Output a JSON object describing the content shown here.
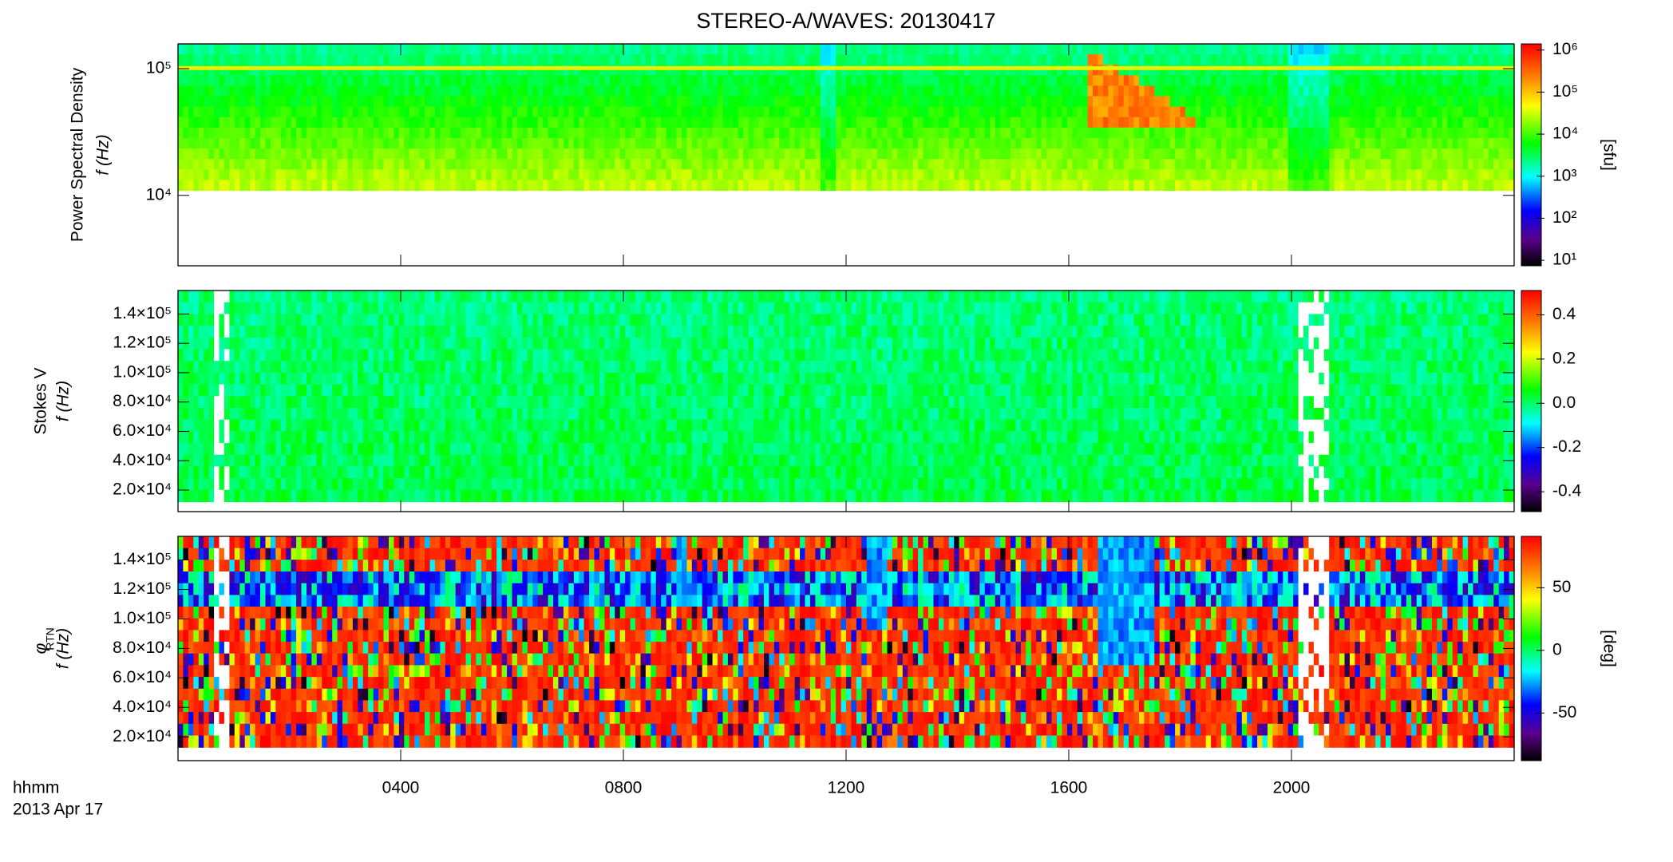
{
  "chart_data": [
    {
      "type": "spectrogram",
      "title": "STEREO-A/WAVES: 20130417",
      "ylabel": [
        "Power Spectral Density",
        "f (Hz)"
      ],
      "ylog": true,
      "ylim": [
        2780,
        157000
      ],
      "yticks": [
        {
          "value": 10000,
          "label": "10⁴"
        },
        {
          "value": 100000,
          "label": "10⁵"
        }
      ],
      "colorbar": {
        "log": true,
        "lim": [
          7.4,
          1400000
        ],
        "label": "[sfu]",
        "ticks": [
          {
            "value": 10,
            "label": "10¹"
          },
          {
            "value": 100,
            "label": "10²"
          },
          {
            "value": 1000,
            "label": "10³"
          },
          {
            "value": 10000,
            "label": "10⁴"
          },
          {
            "value": 100000,
            "label": "10⁵"
          },
          {
            "value": 1000000,
            "label": "10⁶"
          }
        ]
      }
    },
    {
      "type": "spectrogram",
      "ylabel": [
        "Stokes V",
        "f (Hz)"
      ],
      "ylog": false,
      "ylim": [
        5300,
        156000
      ],
      "yticks": [
        {
          "value": 20000,
          "label": "2.0×10⁴"
        },
        {
          "value": 40000,
          "label": "4.0×10⁴"
        },
        {
          "value": 60000,
          "label": "6.0×10⁴"
        },
        {
          "value": 80000,
          "label": "8.0×10⁴"
        },
        {
          "value": 100000,
          "label": "1.0×10⁵"
        },
        {
          "value": 120000,
          "label": "1.2×10⁵"
        },
        {
          "value": 140000,
          "label": "1.4×10⁵"
        }
      ],
      "colorbar": {
        "log": false,
        "lim": [
          -0.49,
          0.51
        ],
        "ticks": [
          -0.4,
          -0.2,
          {
            "value": 0,
            "label": "0.0"
          },
          0.2,
          0.4
        ]
      }
    },
    {
      "type": "spectrogram",
      "ylabel": [
        "φ",
        "f (Hz)"
      ],
      "ylabel_sub": "RTN",
      "ylog": false,
      "ylim": [
        3900,
        156000
      ],
      "yticks": [
        {
          "value": 20000,
          "label": "2.0×10⁴"
        },
        {
          "value": 40000,
          "label": "4.0×10⁴"
        },
        {
          "value": 60000,
          "label": "6.0×10⁴"
        },
        {
          "value": 80000,
          "label": "8.0×10⁴"
        },
        {
          "value": 100000,
          "label": "1.0×10⁵"
        },
        {
          "value": 120000,
          "label": "1.2×10⁵"
        },
        {
          "value": 140000,
          "label": "1.4×10⁵"
        }
      ],
      "colorbar": {
        "log": false,
        "lim": [
          -88,
          91
        ],
        "label": "[deg]",
        "ticks": [
          -50,
          0,
          50
        ]
      },
      "xlim": [
        0,
        24
      ],
      "xticks": [
        {
          "value": 4,
          "label": "0400"
        },
        {
          "value": 8,
          "label": "0800"
        },
        {
          "value": 12,
          "label": "1200"
        },
        {
          "value": 16,
          "label": "1600"
        },
        {
          "value": 20,
          "label": "2000"
        }
      ],
      "xlabel": [
        "hhmm",
        "2013 Apr 17"
      ]
    }
  ]
}
